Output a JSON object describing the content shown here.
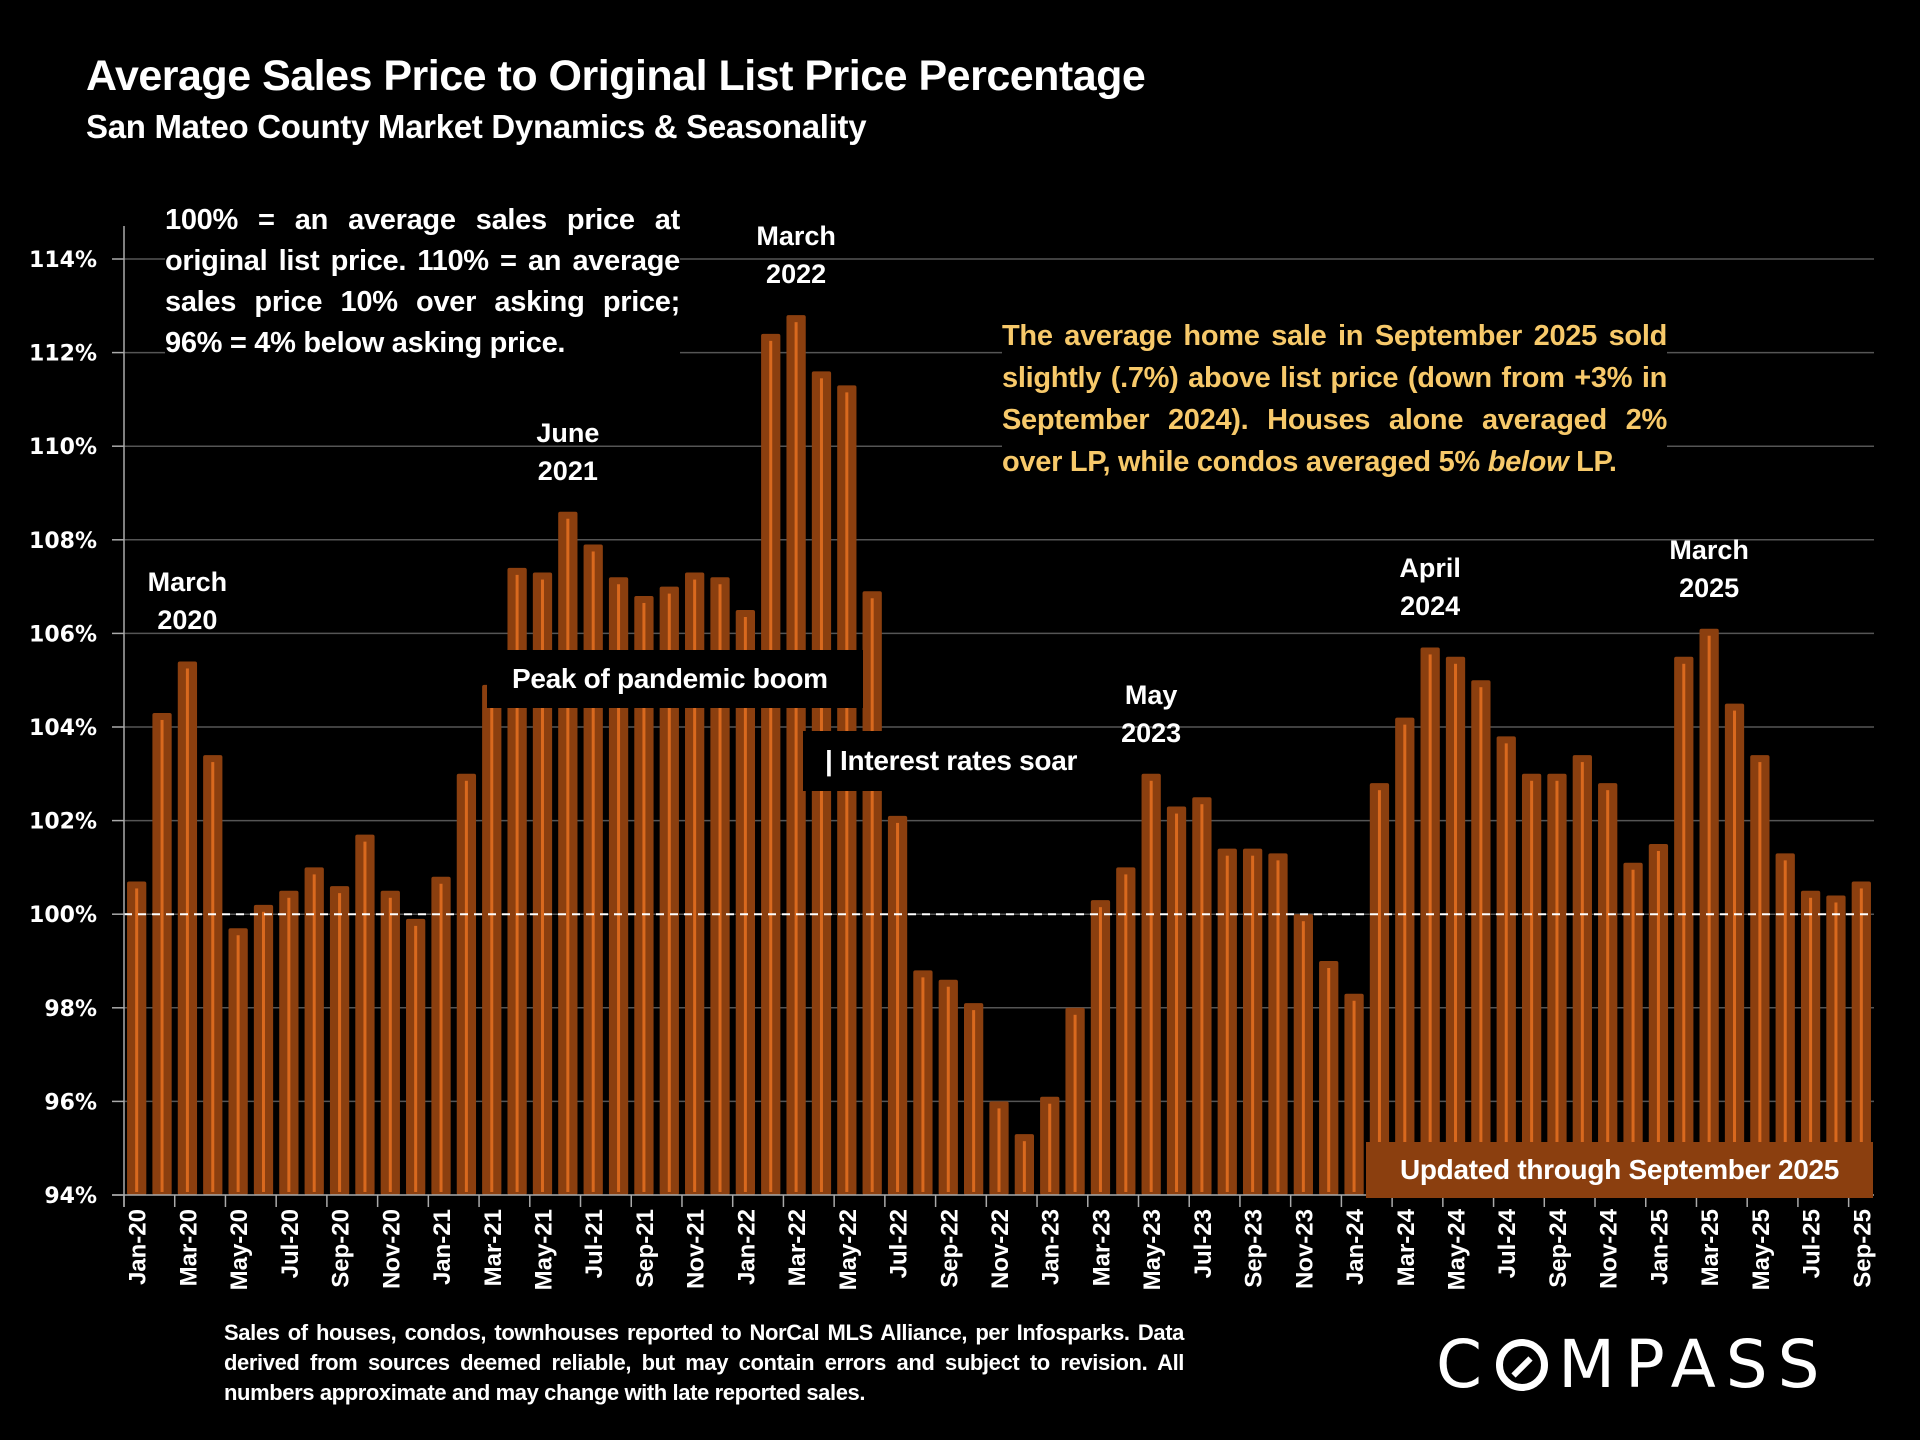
{
  "header": {
    "title": "Average Sales Price to Original List Price Percentage",
    "subtitle": "San Mateo County Market Dynamics & Seasonality"
  },
  "notes": {
    "explanation": "100% = an average sales price at original list price. 110% = an average sales price 10% over asking price; 96% = 4% below asking price.",
    "insight_part1": "The average home sale in September 2025 sold slightly (.7%) above list price (down from +3% in September 2024). Houses alone averaged 2% over LP, while condos averaged 5% ",
    "insight_em": "below",
    "insight_part2": " LP.",
    "peak_callout": "Peak of pandemic boom",
    "rates_callout": "| Interest rates soar",
    "updated": "Updated through September 2025",
    "footnote": "Sales of houses, condos, townhouses reported to NorCal MLS Alliance, per Infosparks. Data derived from sources deemed reliable, but may contain errors and subject to revision. All numbers approximate and may change with late reported sales.",
    "logo": "COMPASS"
  },
  "colors": {
    "bar": "#8B3F0F",
    "bar_highlight": "#D9691E",
    "insight_text": "#F7C96A",
    "gridline": "#555555",
    "reference_line": "#FFFFFF",
    "background": "#000000"
  },
  "chart_data": {
    "type": "bar",
    "title": "Average Sales Price to Original List Price Percentage",
    "subtitle": "San Mateo County Market Dynamics & Seasonality",
    "xlabel": "",
    "ylabel": "",
    "ylim": [
      94,
      114.7
    ],
    "yticks": [
      94,
      96,
      98,
      100,
      102,
      104,
      106,
      108,
      110,
      112,
      114
    ],
    "ytick_labels": [
      "94%",
      "96%",
      "98%",
      "100%",
      "102%",
      "104%",
      "106%",
      "108%",
      "110%",
      "112%",
      "114%"
    ],
    "grid": true,
    "reference_line": {
      "value": 100,
      "style": "dashed"
    },
    "categories": [
      "Jan-20",
      "Feb-20",
      "Mar-20",
      "Apr-20",
      "May-20",
      "Jun-20",
      "Jul-20",
      "Aug-20",
      "Sep-20",
      "Oct-20",
      "Nov-20",
      "Dec-20",
      "Jan-21",
      "Feb-21",
      "Mar-21",
      "Apr-21",
      "May-21",
      "Jun-21",
      "Jul-21",
      "Aug-21",
      "Sep-21",
      "Oct-21",
      "Nov-21",
      "Dec-21",
      "Jan-22",
      "Feb-22",
      "Mar-22",
      "Apr-22",
      "May-22",
      "Jun-22",
      "Jul-22",
      "Aug-22",
      "Sep-22",
      "Oct-22",
      "Nov-22",
      "Dec-22",
      "Jan-23",
      "Feb-23",
      "Mar-23",
      "Apr-23",
      "May-23",
      "Jun-23",
      "Jul-23",
      "Aug-23",
      "Sep-23",
      "Oct-23",
      "Nov-23",
      "Dec-23",
      "Jan-24",
      "Feb-24",
      "Mar-24",
      "Apr-24",
      "May-24",
      "Jun-24",
      "Jul-24",
      "Aug-24",
      "Sep-24",
      "Oct-24",
      "Nov-24",
      "Dec-24",
      "Jan-25",
      "Feb-25",
      "Mar-25",
      "Apr-25",
      "May-25",
      "Jun-25",
      "Jul-25",
      "Aug-25",
      "Sep-25"
    ],
    "values": [
      100.7,
      104.3,
      105.4,
      103.4,
      99.7,
      100.2,
      100.5,
      101.0,
      100.6,
      101.7,
      100.5,
      99.9,
      100.8,
      103.0,
      104.9,
      107.4,
      107.3,
      108.6,
      107.9,
      107.2,
      106.8,
      107.0,
      107.3,
      107.2,
      106.5,
      112.4,
      112.8,
      111.6,
      111.3,
      106.9,
      102.1,
      98.8,
      98.6,
      98.1,
      96.0,
      95.3,
      96.1,
      98.0,
      100.3,
      101.0,
      103.0,
      102.3,
      102.5,
      101.4,
      101.4,
      101.3,
      100.0,
      99.0,
      98.3,
      102.8,
      104.2,
      105.7,
      105.5,
      105.0,
      103.8,
      103.0,
      103.0,
      103.4,
      102.8,
      101.1,
      101.5,
      105.5,
      106.1,
      104.5,
      103.4,
      101.3,
      100.5,
      100.4,
      100.7
    ],
    "xtick_labels": [
      "Jan-20",
      "Mar-20",
      "May-20",
      "Jul-20",
      "Sep-20",
      "Nov-20",
      "Jan-21",
      "Mar-21",
      "May-21",
      "Jul-21",
      "Sep-21",
      "Nov-21",
      "Jan-22",
      "Mar-22",
      "May-22",
      "Jul-22",
      "Sep-22",
      "Nov-22",
      "Jan-23",
      "Mar-23",
      "May-23",
      "Jul-23",
      "Sep-23",
      "Nov-23",
      "Jan-24",
      "Mar-24",
      "May-24",
      "Jul-24",
      "Sep-24",
      "Nov-24",
      "Jan-25",
      "Mar-25",
      "May-25",
      "Jul-25",
      "Sep-25"
    ],
    "annotations": [
      {
        "label": "March\n2020",
        "category": "Mar-20"
      },
      {
        "label": "June\n2021",
        "category": "Jun-21"
      },
      {
        "label": "March\n2022",
        "category": "Mar-22"
      },
      {
        "label": "May\n2023",
        "category": "May-23"
      },
      {
        "label": "April\n2024",
        "category": "Apr-24"
      },
      {
        "label": "March\n2025",
        "category": "Mar-25"
      }
    ],
    "legend": "none"
  }
}
